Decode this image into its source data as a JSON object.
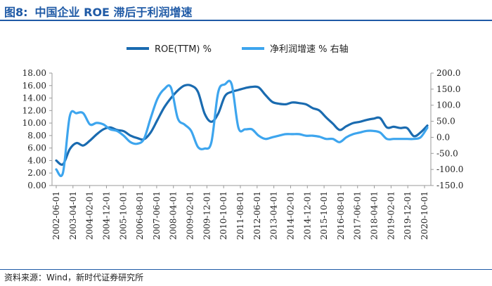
{
  "header": {
    "figure_no": "图8:",
    "title": "中国企业 ROE 滞后于利润增速"
  },
  "footer": {
    "source": "资料来源：Wind，新时代证券研究所"
  },
  "colors": {
    "roe": "#1a6bb0",
    "profit": "#3da5ee",
    "title": "#1f5aa6"
  },
  "chart_data": {
    "type": "line",
    "title": "中国企业 ROE 滞后于利润增速",
    "legend": [
      "ROE(TTM) %",
      "净利润增速 % 右轴"
    ],
    "x_tick_labels": [
      "2002-06-01",
      "2003-04-01",
      "2004-02-01",
      "2004-12-01",
      "2005-10-01",
      "2006-08-01",
      "2007-06-01",
      "2008-04-01",
      "2009-02-01",
      "2009-12-01",
      "2010-10-01",
      "2011-08-01",
      "2012-06-01",
      "2013-04-01",
      "2014-02-01",
      "2014-12-01",
      "2015-10-01",
      "2016-08-01",
      "2017-06-01",
      "2018-04-01",
      "2019-02-01",
      "2019-12-01",
      "2020-10-01"
    ],
    "y_left": {
      "ticks": [
        "0.00",
        "2.00",
        "4.00",
        "6.00",
        "8.00",
        "10.00",
        "12.00",
        "14.00",
        "16.00",
        "18.00"
      ],
      "range": [
        0,
        18
      ]
    },
    "y_right": {
      "ticks": [
        "-150.0",
        "-100.0",
        "-50.0",
        "0.0",
        "50.0",
        "100.0",
        "150.0",
        "200.0"
      ],
      "range": [
        -150,
        200
      ]
    },
    "series": [
      {
        "name": "ROE(TTM) %",
        "axis": "left",
        "values": [
          4.0,
          3.4,
          5.8,
          6.8,
          6.4,
          7.2,
          8.2,
          9.0,
          9.3,
          8.9,
          8.7,
          8.0,
          7.6,
          7.4,
          8.5,
          10.5,
          12.5,
          14.0,
          15.2,
          16.0,
          16.0,
          15.0,
          11.5,
          10.2,
          11.5,
          14.3,
          15.0,
          15.3,
          15.6,
          15.8,
          15.7,
          14.5,
          13.4,
          13.1,
          13.0,
          13.3,
          13.2,
          13.0,
          12.4,
          12.0,
          10.9,
          9.9,
          8.9,
          9.5,
          10.0,
          10.2,
          10.5,
          10.7,
          10.8,
          9.3,
          9.4,
          9.2,
          9.2,
          7.9,
          8.5,
          9.6
        ]
      },
      {
        "name": "净利润增速 % 右轴",
        "axis": "right",
        "values": [
          -100,
          -110,
          65,
          75,
          75,
          40,
          45,
          40,
          25,
          20,
          5,
          -15,
          -20,
          -5,
          60,
          120,
          150,
          155,
          60,
          40,
          20,
          -30,
          -35,
          -15,
          140,
          165,
          165,
          30,
          25,
          25,
          5,
          -5,
          0,
          5,
          10,
          10,
          10,
          5,
          5,
          2,
          -5,
          -5,
          -15,
          0,
          10,
          15,
          20,
          20,
          15,
          -5,
          -5,
          -5,
          -5,
          -5,
          0,
          30
        ]
      }
    ]
  }
}
